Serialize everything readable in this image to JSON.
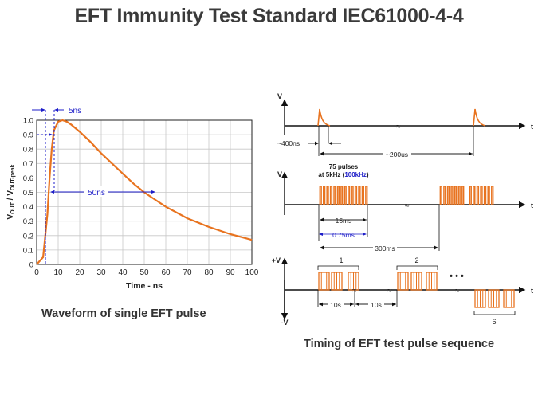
{
  "slide_title": "EFT Immunity Test Standard IEC61000-4-4",
  "left_chart": {
    "caption": "Waveform of single EFT pulse",
    "ylabel_main": "V",
    "ylabel_sub1": "OUT",
    "ylabel_slash": " / V",
    "ylabel_sub2": "OUT-peak",
    "xlabel": "Time - ns",
    "rise_label": "5ns",
    "width_label": "50ns",
    "x_ticks": [
      "0",
      "10",
      "20",
      "30",
      "40",
      "50",
      "60",
      "70",
      "80",
      "90",
      "100"
    ],
    "y_ticks": [
      "0",
      "0.1",
      "0.2",
      "0.3",
      "0.4",
      "0.5",
      "0.6",
      "0.7",
      "0.8",
      "0.9",
      "1.0"
    ]
  },
  "chart_data": {
    "type": "line",
    "title": "",
    "xlabel": "Time - ns",
    "ylabel": "VOUT / VOUT-peak",
    "xlim": [
      0,
      100
    ],
    "ylim": [
      0,
      1.0
    ],
    "grid": true,
    "series": [
      {
        "x": [
          0,
          3,
          5,
          6,
          7,
          8,
          10,
          12,
          14,
          16,
          20,
          25,
          30,
          35,
          40,
          45,
          50,
          55,
          60,
          70,
          80,
          90,
          100
        ],
        "y": [
          0,
          0.05,
          0.35,
          0.6,
          0.8,
          0.93,
          0.99,
          1.0,
          0.99,
          0.97,
          0.92,
          0.85,
          0.77,
          0.7,
          0.63,
          0.56,
          0.5,
          0.45,
          0.4,
          0.32,
          0.26,
          0.21,
          0.17
        ]
      }
    ]
  },
  "right_diagram": {
    "caption": "Timing of EFT test pulse sequence",
    "axis_v": "V",
    "axis_t": "t",
    "axis_pos_v": "+V",
    "axis_neg_v": "-V",
    "label_400ns": "~400ns",
    "label_200us": "~200us",
    "label_75_pulses": "75 pulses",
    "label_at_5khz": "at 5kHz (",
    "label_100khz": "100kHz",
    "label_close": ")",
    "label_15ms": "15ms",
    "label_075ms": "0.75ms",
    "label_300ms": "300ms",
    "label_group1": "1",
    "label_group2": "2",
    "label_group6": "6",
    "label_10s_a": "10s",
    "label_10s_b": "10s",
    "ellipsis": "• • •"
  },
  "colors": {
    "curve": "#e8731f",
    "annotation_blue": "#1c1cc8",
    "text": "#333333"
  }
}
